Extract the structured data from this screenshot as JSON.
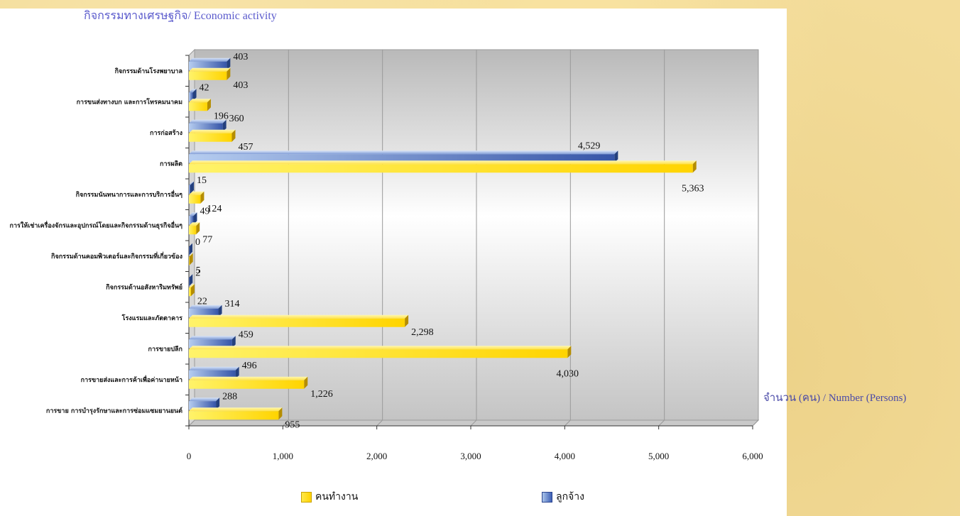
{
  "title": "กิจกรรมทางเศรษฐกิจ/ Economic activity",
  "xlabel": "จำนวน (คน) / Number  (Persons)",
  "legend": {
    "workers": "คนทำงาน",
    "employees": "ลูกจ้าง"
  },
  "colors": {
    "workers": "#ffd700",
    "employees": "#3c5db0",
    "title": "#5a5acc",
    "plot_bg_top": "#c8c8c8",
    "plot_bg_mid": "#ffffff"
  },
  "chart_data": {
    "type": "bar",
    "orientation": "horizontal",
    "categories": [
      "กิจกรรมด้านโรงพยาบาล",
      "การขนส่งทางบก และการโทรคมนาคม",
      "การก่อสร้าง",
      "การผลิต",
      "กิจกรรมนันทนาการและการบริการอื่นๆ",
      "การให้เช่าเครื่องจักรและอุปกรณ์โดยและกิจกรรมด้านธุรกิจอื่นๆ",
      "กิจกรรมด้านคอมพิวเตอร์และกิจกรรมที่เกี่ยวข้อง",
      "กิจกรรมด้านอสังหาริมทรัพย์",
      "โรงแรมและภัตตาคาร",
      "การขายปลีก",
      "การขายส่งและการค้าเพื่อค่านายหน้า",
      "การขาย การบำรุงรักษาและการซ่อมแซมยานยนต์"
    ],
    "series": [
      {
        "name": "ลูกจ้าง",
        "values": [
          403,
          42,
          360,
          4529,
          15,
          49,
          0,
          2,
          314,
          459,
          496,
          288
        ],
        "labels": [
          "403",
          "42",
          "360",
          "4,529",
          "15",
          "49",
          "0",
          "2",
          "314",
          "459",
          "496",
          "288"
        ]
      },
      {
        "name": "คนทำงาน",
        "values": [
          403,
          196,
          457,
          5363,
          124,
          77,
          5,
          22,
          2298,
          4030,
          1226,
          955
        ],
        "labels": [
          "403",
          "196",
          "457",
          "5,363",
          "124",
          "77",
          "5",
          "22",
          "2,298",
          "4,030",
          "1,226",
          "955"
        ]
      }
    ],
    "xticks": [
      "0",
      "1,000",
      "2,000",
      "3,000",
      "4,000",
      "5,000",
      "6,000"
    ],
    "xlim": [
      0,
      6000
    ],
    "grid": true,
    "legend_position": "bottom"
  }
}
